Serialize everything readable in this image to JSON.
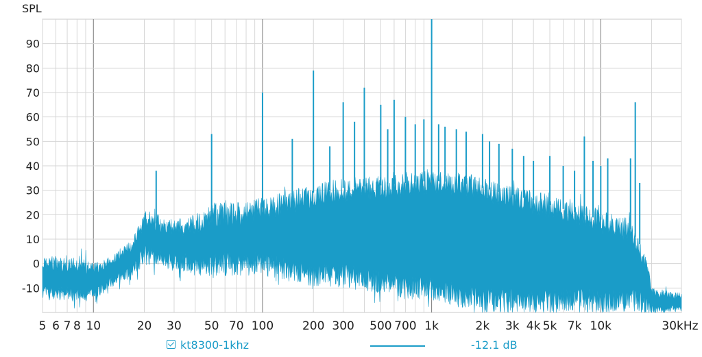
{
  "chart_data": {
    "type": "line",
    "title": "",
    "xlabel": "",
    "ylabel": "SPL",
    "x_scale": "log",
    "xlim": [
      5,
      30000
    ],
    "ylim": [
      -20,
      100
    ],
    "x_tick_labels": [
      {
        "value": 5,
        "label": "5"
      },
      {
        "value": 6,
        "label": "6"
      },
      {
        "value": 7,
        "label": "7"
      },
      {
        "value": 8,
        "label": "8"
      },
      {
        "value": 10,
        "label": "10"
      },
      {
        "value": 20,
        "label": "20"
      },
      {
        "value": 30,
        "label": "30"
      },
      {
        "value": 50,
        "label": "50"
      },
      {
        "value": 70,
        "label": "70"
      },
      {
        "value": 100,
        "label": "100"
      },
      {
        "value": 200,
        "label": "200"
      },
      {
        "value": 300,
        "label": "300"
      },
      {
        "value": 500,
        "label": "500"
      },
      {
        "value": 700,
        "label": "700"
      },
      {
        "value": 1000,
        "label": "1k"
      },
      {
        "value": 2000,
        "label": "2k"
      },
      {
        "value": 3000,
        "label": "3k"
      },
      {
        "value": 4000,
        "label": "4k"
      },
      {
        "value": 5000,
        "label": "5k"
      },
      {
        "value": 7000,
        "label": "7k"
      },
      {
        "value": 10000,
        "label": "10k"
      },
      {
        "value": 30000,
        "label": "30kHz"
      }
    ],
    "y_ticks": [
      -10,
      0,
      10,
      20,
      30,
      40,
      50,
      60,
      70,
      80,
      90
    ],
    "grid": true,
    "legend_position": "bottom",
    "series": [
      {
        "name": "kt8300-1khz",
        "color": "#1a9cc8",
        "legend_value": "-12.1 dB",
        "envelope": {
          "upper": [
            [
              5,
              3
            ],
            [
              8,
              3
            ],
            [
              10,
              0
            ],
            [
              14,
              5
            ],
            [
              17,
              10
            ],
            [
              20,
              22
            ],
            [
              30,
              18
            ],
            [
              40,
              20
            ],
            [
              50,
              25
            ],
            [
              70,
              25
            ],
            [
              100,
              27
            ],
            [
              150,
              30
            ],
            [
              200,
              33
            ],
            [
              300,
              35
            ],
            [
              500,
              36
            ],
            [
              700,
              37
            ],
            [
              1000,
              38
            ],
            [
              1500,
              37
            ],
            [
              2000,
              35
            ],
            [
              3000,
              32
            ],
            [
              4000,
              30
            ],
            [
              5000,
              28
            ],
            [
              7000,
              25
            ],
            [
              10000,
              22
            ],
            [
              15000,
              18
            ],
            [
              17000,
              12
            ],
            [
              19000,
              0
            ],
            [
              20000,
              -10
            ],
            [
              30000,
              -12
            ]
          ],
          "lower": [
            [
              5,
              -15
            ],
            [
              8,
              -15
            ],
            [
              10,
              -15
            ],
            [
              14,
              -8
            ],
            [
              17,
              -5
            ],
            [
              20,
              0
            ],
            [
              30,
              -2
            ],
            [
              40,
              -5
            ],
            [
              50,
              -5
            ],
            [
              70,
              -5
            ],
            [
              100,
              -5
            ],
            [
              150,
              -8
            ],
            [
              200,
              -10
            ],
            [
              300,
              -10
            ],
            [
              500,
              -12
            ],
            [
              700,
              -15
            ],
            [
              1000,
              -15
            ],
            [
              1500,
              -18
            ],
            [
              2000,
              -20
            ],
            [
              3000,
              -20
            ],
            [
              4000,
              -20
            ],
            [
              5000,
              -20
            ],
            [
              7000,
              -20
            ],
            [
              10000,
              -20
            ],
            [
              15000,
              -20
            ],
            [
              17000,
              -20
            ],
            [
              19000,
              -20
            ],
            [
              20000,
              -20
            ],
            [
              30000,
              -20
            ]
          ]
        },
        "peaks": [
          {
            "freq": 23.5,
            "spl": 38
          },
          {
            "freq": 50,
            "spl": 53
          },
          {
            "freq": 100,
            "spl": 70
          },
          {
            "freq": 150,
            "spl": 51
          },
          {
            "freq": 200,
            "spl": 79
          },
          {
            "freq": 250,
            "spl": 48
          },
          {
            "freq": 300,
            "spl": 66
          },
          {
            "freq": 350,
            "spl": 58
          },
          {
            "freq": 400,
            "spl": 72
          },
          {
            "freq": 500,
            "spl": 65
          },
          {
            "freq": 550,
            "spl": 55
          },
          {
            "freq": 600,
            "spl": 67
          },
          {
            "freq": 700,
            "spl": 60
          },
          {
            "freq": 800,
            "spl": 57
          },
          {
            "freq": 900,
            "spl": 59
          },
          {
            "freq": 1000,
            "spl": 100
          },
          {
            "freq": 1100,
            "spl": 57
          },
          {
            "freq": 1200,
            "spl": 56
          },
          {
            "freq": 1400,
            "spl": 55
          },
          {
            "freq": 1600,
            "spl": 54
          },
          {
            "freq": 2000,
            "spl": 53
          },
          {
            "freq": 2200,
            "spl": 50
          },
          {
            "freq": 2500,
            "spl": 49
          },
          {
            "freq": 3000,
            "spl": 47
          },
          {
            "freq": 3500,
            "spl": 44
          },
          {
            "freq": 4000,
            "spl": 42
          },
          {
            "freq": 5000,
            "spl": 44
          },
          {
            "freq": 6000,
            "spl": 40
          },
          {
            "freq": 7000,
            "spl": 38
          },
          {
            "freq": 8000,
            "spl": 52
          },
          {
            "freq": 9000,
            "spl": 42
          },
          {
            "freq": 10000,
            "spl": 40
          },
          {
            "freq": 11000,
            "spl": 43
          },
          {
            "freq": 15000,
            "spl": 43
          },
          {
            "freq": 16000,
            "spl": 66
          },
          {
            "freq": 17000,
            "spl": 33
          }
        ]
      }
    ]
  }
}
